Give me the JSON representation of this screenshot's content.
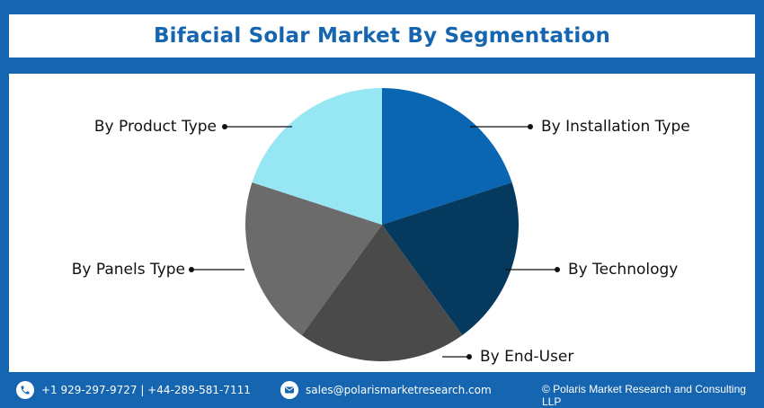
{
  "header": {
    "title": "Bifacial Solar Market By Segmentation"
  },
  "colors": {
    "brand_blue": "#1565b0",
    "background": "#ffffff"
  },
  "chart_data": {
    "type": "pie",
    "title": "Bifacial Solar Market By Segmentation",
    "start_angle_deg": 0,
    "direction": "clockwise",
    "slices": [
      {
        "label": "By Installation Type",
        "value": 1,
        "color": "#0a66b2"
      },
      {
        "label": "By Technology",
        "value": 1,
        "color": "#053a5e"
      },
      {
        "label": "By End-User",
        "value": 1,
        "color": "#4a4a4a"
      },
      {
        "label": "By Panels Type",
        "value": 1,
        "color": "#6b6b6b"
      },
      {
        "label": "By Product Type",
        "value": 1,
        "color": "#97e6f4"
      }
    ]
  },
  "footer": {
    "phone_icon": "phone-icon",
    "phone": "+1 929-297-9727 | +44-289-581-7111",
    "email_icon": "email-icon",
    "email": "sales@polarismarketresearch.com",
    "copyright": "© Polaris Market Research and Consulting LLP"
  }
}
